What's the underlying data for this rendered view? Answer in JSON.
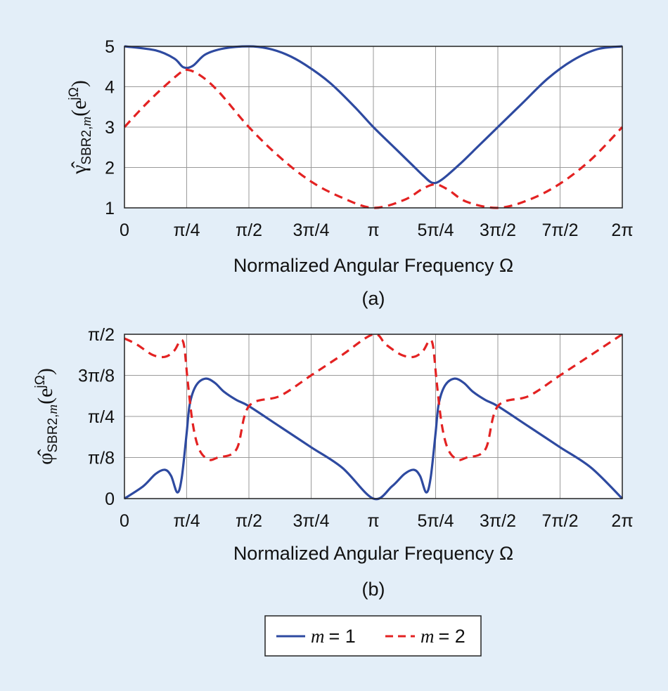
{
  "colors": {
    "background": "#e3eef8",
    "m1": "#2e4aa0",
    "m2": "#e32222",
    "grid": "#9a9a9a",
    "axis": "#222222"
  },
  "legend": {
    "items": [
      {
        "var": "m",
        "eq": "= 1"
      },
      {
        "var": "m",
        "eq": "= 2"
      }
    ]
  },
  "chart_data": [
    {
      "type": "line",
      "panel": "(a)",
      "xlabel": "Normalized Angular Frequency Ω",
      "ylabel": {
        "sym": "γ̂",
        "sub": "SBR2,",
        "subvar": "m",
        "arg": "(e",
        "sup": "jΩ",
        "close": ")"
      },
      "xlim": [
        0,
        8
      ],
      "xticks": [
        0,
        1,
        2,
        3,
        4,
        5,
        6,
        7,
        8
      ],
      "xticklabels": [
        "0",
        "π/4",
        "π/2",
        "3π/4",
        "π",
        "5π/4",
        "3π/2",
        "7π/2",
        "2π"
      ],
      "ylim": [
        1,
        5
      ],
      "yticks": [
        1,
        2,
        3,
        4,
        5
      ],
      "yticklabels": [
        "1",
        "2",
        "3",
        "4",
        "5"
      ],
      "grid": true,
      "series": [
        {
          "name": "m = 1",
          "style": "solid",
          "x": [
            0,
            0.5,
            0.8,
            0.95,
            1.1,
            1.3,
            1.6,
            2.0,
            2.3,
            2.6,
            2.9,
            3.3,
            3.7,
            4.0,
            4.3,
            4.6,
            4.8,
            4.95,
            5.1,
            5.4,
            5.7,
            6.0,
            6.4,
            6.8,
            7.2,
            7.6,
            8.0
          ],
          "y": [
            5.0,
            4.9,
            4.7,
            4.48,
            4.52,
            4.8,
            4.95,
            5.0,
            4.95,
            4.8,
            4.55,
            4.1,
            3.5,
            3.0,
            2.55,
            2.1,
            1.8,
            1.62,
            1.7,
            2.1,
            2.55,
            3.0,
            3.6,
            4.2,
            4.65,
            4.93,
            5.0
          ]
        },
        {
          "name": "m = 2",
          "style": "dashed",
          "x": [
            0,
            0.3,
            0.6,
            0.9,
            1.0,
            1.2,
            1.5,
            2.0,
            2.5,
            3.0,
            3.5,
            4.0,
            4.5,
            4.8,
            5.0,
            5.2,
            5.5,
            6.0,
            6.5,
            7.0,
            7.5,
            8.0
          ],
          "y": [
            3.0,
            3.5,
            3.95,
            4.35,
            4.42,
            4.3,
            3.9,
            3.0,
            2.25,
            1.65,
            1.25,
            1.0,
            1.2,
            1.48,
            1.58,
            1.45,
            1.15,
            1.0,
            1.2,
            1.6,
            2.2,
            3.0
          ]
        }
      ]
    },
    {
      "type": "line",
      "panel": "(b)",
      "xlabel": "Normalized Angular Frequency Ω",
      "ylabel": {
        "sym": "φ̂",
        "sub": "SBR2,",
        "subvar": "m",
        "arg": "(e",
        "sup": "jΩ",
        "close": ")"
      },
      "xlim": [
        0,
        8
      ],
      "xticks": [
        0,
        1,
        2,
        3,
        4,
        5,
        6,
        7,
        8
      ],
      "xticklabels": [
        "0",
        "π/4",
        "π/2",
        "3π/4",
        "π",
        "5π/4",
        "3π/2",
        "7π/2",
        "2π"
      ],
      "ylim": [
        0,
        4
      ],
      "yticks": [
        0,
        1,
        2,
        3,
        4
      ],
      "yticklabels": [
        "0",
        "π/8",
        "π/4",
        "3π/8",
        "π/2"
      ],
      "grid": true,
      "series": [
        {
          "name": "m = 1",
          "style": "solid",
          "x": [
            0,
            0.3,
            0.5,
            0.65,
            0.75,
            0.85,
            0.92,
            1.0,
            1.05,
            1.15,
            1.3,
            1.45,
            1.6,
            1.8,
            2.0,
            2.5,
            3.0,
            3.5,
            4.0,
            4.3,
            4.5,
            4.65,
            4.75,
            4.85,
            4.92,
            5.0,
            5.05,
            5.15,
            5.3,
            5.45,
            5.6,
            5.8,
            6.0,
            6.5,
            7.0,
            7.5,
            8.0
          ],
          "y": [
            0,
            0.3,
            0.6,
            0.7,
            0.55,
            0.15,
            0.5,
            1.6,
            2.3,
            2.75,
            2.92,
            2.82,
            2.6,
            2.4,
            2.25,
            1.75,
            1.25,
            0.75,
            0,
            0.3,
            0.6,
            0.7,
            0.55,
            0.15,
            0.5,
            1.6,
            2.3,
            2.75,
            2.92,
            2.82,
            2.6,
            2.4,
            2.25,
            1.75,
            1.25,
            0.75,
            0
          ]
        },
        {
          "name": "m = 2",
          "style": "dashed",
          "x": [
            0,
            0.2,
            0.45,
            0.65,
            0.8,
            0.9,
            0.96,
            1.02,
            1.1,
            1.2,
            1.35,
            1.5,
            1.8,
            2.0,
            2.5,
            3.0,
            3.5,
            4.0,
            4.2,
            4.45,
            4.65,
            4.8,
            4.9,
            4.96,
            5.02,
            5.1,
            5.2,
            5.35,
            5.5,
            5.8,
            6.0,
            6.5,
            7.0,
            7.5,
            8.0
          ],
          "y": [
            3.9,
            3.75,
            3.5,
            3.45,
            3.6,
            3.85,
            3.7,
            2.8,
            1.8,
            1.2,
            0.95,
            1.0,
            1.2,
            2.25,
            2.5,
            3.0,
            3.5,
            4.0,
            3.75,
            3.5,
            3.45,
            3.6,
            3.85,
            3.7,
            2.8,
            1.8,
            1.2,
            0.95,
            1.0,
            1.2,
            2.25,
            2.5,
            3.0,
            3.5,
            4.0
          ]
        }
      ]
    }
  ]
}
